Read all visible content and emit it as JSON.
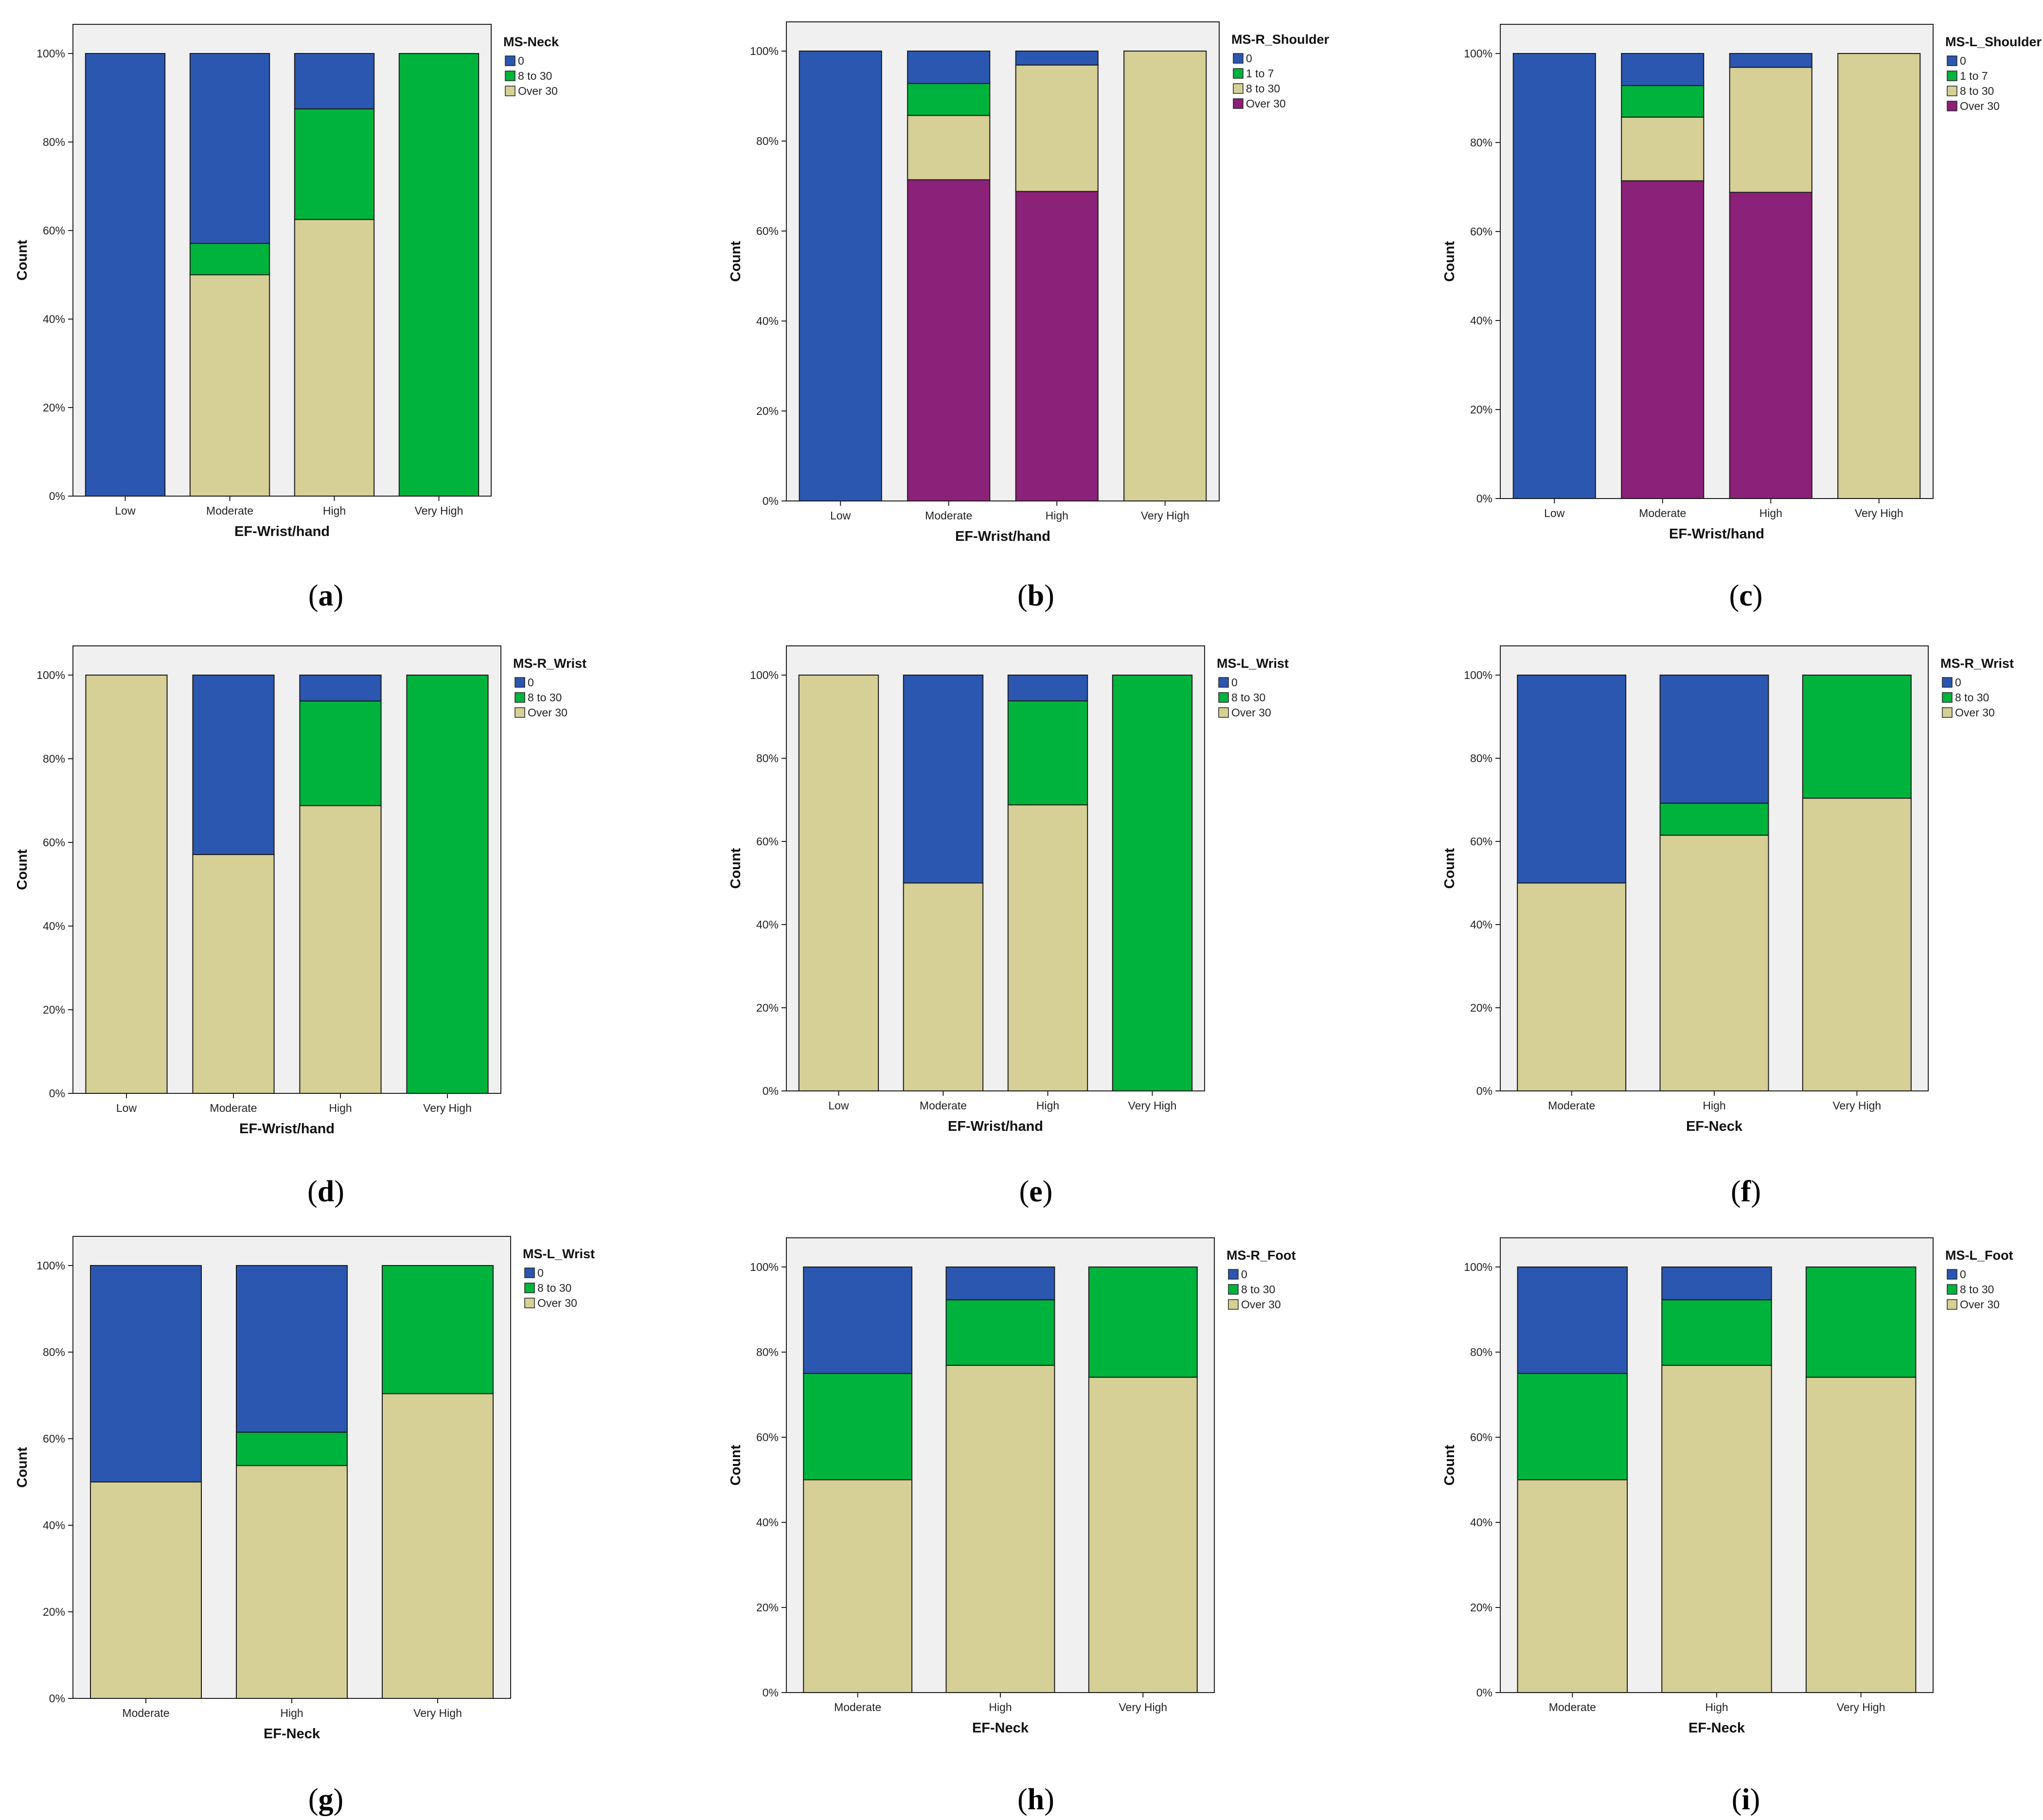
{
  "colors": {
    "0": "#2b57b0",
    "1 to 7": "#00b33c",
    "8 to 30": "#00b33c",
    "Over 30": "#d6cf96",
    "over30_purple": "#8b2179",
    "plot_bg": "#f0f0f0"
  },
  "chart_data": [
    {
      "type": "bar",
      "stacked": true,
      "panel_label": "a",
      "xlabel": "EF-Wrist/hand",
      "ylabel": "Count",
      "ylim": [
        0,
        100
      ],
      "yticks": [
        "0%",
        "20%",
        "40%",
        "60%",
        "80%",
        "100%"
      ],
      "legend_title": "MS-Neck",
      "legend": [
        "0",
        "8 to 30",
        "Over 30"
      ],
      "categories": [
        "Low",
        "Moderate",
        "High",
        "Very High"
      ],
      "series": [
        {
          "name": "Over 30",
          "color": "#d6cf96",
          "values": [
            0,
            50,
            62.5,
            0
          ]
        },
        {
          "name": "8 to 30",
          "color": "#00b33c",
          "values": [
            0,
            7.1,
            25,
            100
          ]
        },
        {
          "name": "0",
          "color": "#2b57b0",
          "values": [
            100,
            42.9,
            12.5,
            0
          ]
        }
      ]
    },
    {
      "type": "bar",
      "stacked": true,
      "panel_label": "b",
      "xlabel": "EF-Wrist/hand",
      "ylabel": "Count",
      "ylim": [
        0,
        100
      ],
      "yticks": [
        "0%",
        "20%",
        "40%",
        "60%",
        "80%",
        "100%"
      ],
      "legend_title": "MS-R_Shoulder",
      "legend": [
        "0",
        "1 to 7",
        "8 to 30",
        "Over 30"
      ],
      "categories": [
        "Low",
        "Moderate",
        "High",
        "Very High"
      ],
      "series": [
        {
          "name": "Over 30",
          "color": "#8b2179",
          "values": [
            0,
            71.4,
            68.8,
            0
          ]
        },
        {
          "name": "8 to 30",
          "color": "#d6cf96",
          "values": [
            0,
            14.3,
            28.1,
            100
          ]
        },
        {
          "name": "1 to 7",
          "color": "#00b33c",
          "values": [
            0,
            7.1,
            0,
            0
          ]
        },
        {
          "name": "0",
          "color": "#2b57b0",
          "values": [
            100,
            7.2,
            3.1,
            0
          ]
        }
      ]
    },
    {
      "type": "bar",
      "stacked": true,
      "panel_label": "c",
      "xlabel": "EF-Wrist/hand",
      "ylabel": "Count",
      "ylim": [
        0,
        100
      ],
      "yticks": [
        "0%",
        "20%",
        "40%",
        "60%",
        "80%",
        "100%"
      ],
      "legend_title": "MS-L_Shoulder",
      "legend": [
        "0",
        "1 to 7",
        "8 to 30",
        "Over 30"
      ],
      "categories": [
        "Low",
        "Moderate",
        "High",
        "Very High"
      ],
      "series": [
        {
          "name": "Over 30",
          "color": "#8b2179",
          "values": [
            0,
            71.4,
            68.8,
            0
          ]
        },
        {
          "name": "8 to 30",
          "color": "#d6cf96",
          "values": [
            0,
            14.3,
            28.1,
            100
          ]
        },
        {
          "name": "1 to 7",
          "color": "#00b33c",
          "values": [
            0,
            7.1,
            0,
            0
          ]
        },
        {
          "name": "0",
          "color": "#2b57b0",
          "values": [
            100,
            7.2,
            3.1,
            0
          ]
        }
      ]
    },
    {
      "type": "bar",
      "stacked": true,
      "panel_label": "d",
      "xlabel": "EF-Wrist/hand",
      "ylabel": "Count",
      "ylim": [
        0,
        100
      ],
      "yticks": [
        "0%",
        "20%",
        "40%",
        "60%",
        "80%",
        "100%"
      ],
      "legend_title": "MS-R_Wrist",
      "legend": [
        "0",
        "8 to 30",
        "Over 30"
      ],
      "categories": [
        "Low",
        "Moderate",
        "High",
        "Very High"
      ],
      "series": [
        {
          "name": "Over 30",
          "color": "#d6cf96",
          "values": [
            100,
            57.1,
            68.8,
            0
          ]
        },
        {
          "name": "8 to 30",
          "color": "#00b33c",
          "values": [
            0,
            0,
            25,
            100
          ]
        },
        {
          "name": "0",
          "color": "#2b57b0",
          "values": [
            0,
            42.9,
            6.2,
            0
          ]
        }
      ]
    },
    {
      "type": "bar",
      "stacked": true,
      "panel_label": "e",
      "xlabel": "EF-Wrist/hand",
      "ylabel": "Count",
      "ylim": [
        0,
        100
      ],
      "yticks": [
        "0%",
        "20%",
        "40%",
        "60%",
        "80%",
        "100%"
      ],
      "legend_title": "MS-L_Wrist",
      "legend": [
        "0",
        "8 to 30",
        "Over 30"
      ],
      "categories": [
        "Low",
        "Moderate",
        "High",
        "Very High"
      ],
      "series": [
        {
          "name": "Over 30",
          "color": "#d6cf96",
          "values": [
            100,
            50,
            68.8,
            0
          ]
        },
        {
          "name": "8 to 30",
          "color": "#00b33c",
          "values": [
            0,
            0,
            25,
            100
          ]
        },
        {
          "name": "0",
          "color": "#2b57b0",
          "values": [
            0,
            50,
            6.2,
            0
          ]
        }
      ]
    },
    {
      "type": "bar",
      "stacked": true,
      "panel_label": "f",
      "xlabel": "EF-Neck",
      "ylabel": "Count",
      "ylim": [
        0,
        100
      ],
      "yticks": [
        "0%",
        "20%",
        "40%",
        "60%",
        "80%",
        "100%"
      ],
      "legend_title": "MS-R_Wrist",
      "legend": [
        "0",
        "8 to 30",
        "Over 30"
      ],
      "categories": [
        "Moderate",
        "High",
        "Very High"
      ],
      "series": [
        {
          "name": "Over 30",
          "color": "#d6cf96",
          "values": [
            50,
            61.5,
            70.4
          ]
        },
        {
          "name": "8 to 30",
          "color": "#00b33c",
          "values": [
            0,
            7.7,
            29.6
          ]
        },
        {
          "name": "0",
          "color": "#2b57b0",
          "values": [
            50,
            30.8,
            0
          ]
        }
      ]
    },
    {
      "type": "bar",
      "stacked": true,
      "panel_label": "g",
      "xlabel": "EF-Neck",
      "ylabel": "Count",
      "ylim": [
        0,
        100
      ],
      "yticks": [
        "0%",
        "20%",
        "40%",
        "60%",
        "80%",
        "100%"
      ],
      "legend_title": "MS-L_Wrist",
      "legend": [
        "0",
        "8 to 30",
        "Over 30"
      ],
      "categories": [
        "Moderate",
        "High",
        "Very High"
      ],
      "series": [
        {
          "name": "Over 30",
          "color": "#d6cf96",
          "values": [
            50,
            53.8,
            70.4
          ]
        },
        {
          "name": "8 to 30",
          "color": "#00b33c",
          "values": [
            0,
            7.7,
            29.6
          ]
        },
        {
          "name": "0",
          "color": "#2b57b0",
          "values": [
            50,
            38.5,
            0
          ]
        }
      ]
    },
    {
      "type": "bar",
      "stacked": true,
      "panel_label": "h",
      "xlabel": "EF-Neck",
      "ylabel": "Count",
      "ylim": [
        0,
        100
      ],
      "yticks": [
        "0%",
        "20%",
        "40%",
        "60%",
        "80%",
        "100%"
      ],
      "legend_title": "MS-R_Foot",
      "legend": [
        "0",
        "8 to 30",
        "Over 30"
      ],
      "categories": [
        "Moderate",
        "High",
        "Very High"
      ],
      "series": [
        {
          "name": "Over 30",
          "color": "#d6cf96",
          "values": [
            50,
            76.9,
            74.1
          ]
        },
        {
          "name": "8 to 30",
          "color": "#00b33c",
          "values": [
            25,
            15.4,
            25.9
          ]
        },
        {
          "name": "0",
          "color": "#2b57b0",
          "values": [
            25,
            7.7,
            0
          ]
        }
      ]
    },
    {
      "type": "bar",
      "stacked": true,
      "panel_label": "i",
      "xlabel": "EF-Neck",
      "ylabel": "Count",
      "ylim": [
        0,
        100
      ],
      "yticks": [
        "0%",
        "20%",
        "40%",
        "60%",
        "80%",
        "100%"
      ],
      "legend_title": "MS-L_Foot",
      "legend": [
        "0",
        "8 to 30",
        "Over 30"
      ],
      "categories": [
        "Moderate",
        "High",
        "Very High"
      ],
      "series": [
        {
          "name": "Over 30",
          "color": "#d6cf96",
          "values": [
            50,
            76.9,
            74.1
          ]
        },
        {
          "name": "8 to 30",
          "color": "#00b33c",
          "values": [
            25,
            15.4,
            25.9
          ]
        },
        {
          "name": "0",
          "color": "#2b57b0",
          "values": [
            25,
            7.7,
            0
          ]
        }
      ]
    }
  ]
}
